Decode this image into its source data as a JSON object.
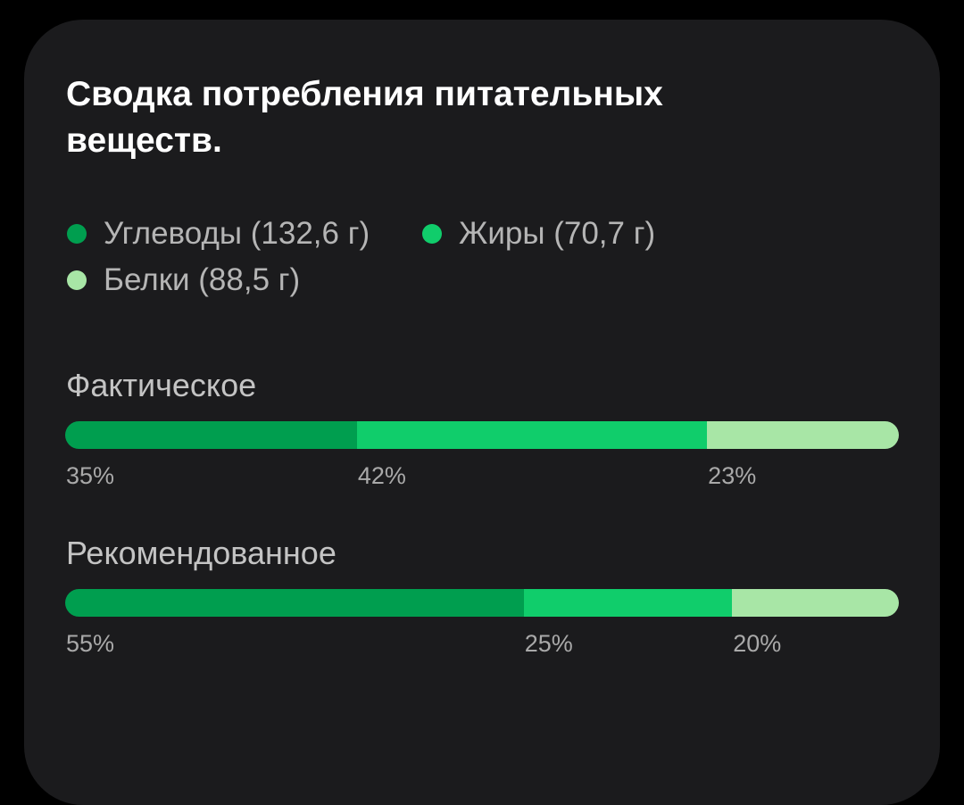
{
  "card": {
    "title": "Сводка потребления питательных веществ."
  },
  "legend": [
    {
      "label": "Углеводы (132,6 г)",
      "color": "#009e4f"
    },
    {
      "label": "Жиры (70,7 г)",
      "color": "#10cd6b"
    },
    {
      "label": "Белки (88,5 г)",
      "color": "#a8e6a6"
    }
  ],
  "actual": {
    "label": "Фактическое",
    "segments": [
      {
        "percent_label": "35%",
        "fraction": 0.35,
        "color": "#009e4f"
      },
      {
        "percent_label": "42%",
        "fraction": 0.42,
        "color": "#10cd6b"
      },
      {
        "percent_label": "23%",
        "fraction": 0.23,
        "color": "#a8e6a6"
      }
    ]
  },
  "recommended": {
    "label": "Рекомендованное",
    "segments": [
      {
        "percent_label": "55%",
        "fraction": 0.55,
        "color": "#009e4f"
      },
      {
        "percent_label": "25%",
        "fraction": 0.25,
        "color": "#10cd6b"
      },
      {
        "percent_label": "20%",
        "fraction": 0.2,
        "color": "#a8e6a6"
      }
    ]
  }
}
